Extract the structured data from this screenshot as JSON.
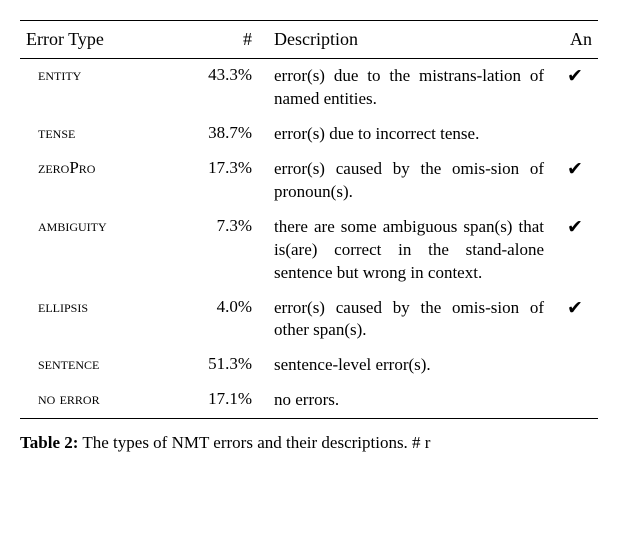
{
  "table": {
    "headers": {
      "col1": "Error Type",
      "col2": "#",
      "col3": "Description",
      "col4": "An"
    },
    "rows": [
      {
        "type_html": "<span class=\"smallcaps\">entity</span>",
        "percent": "43.3%",
        "description": "error(s) due to the mistrans-lation of named entities.",
        "an": "✔"
      },
      {
        "type_html": "<span class=\"smallcaps\">tense</span>",
        "percent": "38.7%",
        "description": "error(s) due to incorrect tense.",
        "an": ""
      },
      {
        "type_html": "<span class=\"smallcaps\">zeroPro</span>",
        "percent": "17.3%",
        "description": "error(s) caused by the omis-sion of pronoun(s).",
        "an": "✔"
      },
      {
        "type_html": "<span class=\"smallcaps\">ambiguity</span>",
        "percent": "7.3%",
        "description": "there are some ambiguous span(s) that is(are) correct in the stand-alone sentence but wrong in context.",
        "an": "✔"
      },
      {
        "type_html": "<span class=\"smallcaps\">ellipsis</span>",
        "percent": "4.0%",
        "description": "error(s) caused by the omis-sion of other span(s).",
        "an": "✔"
      },
      {
        "type_html": "<span class=\"smallcaps\">sentence</span>",
        "percent": "51.3%",
        "description": "sentence-level error(s).",
        "an": ""
      },
      {
        "type_html": "<span class=\"smallcaps\">no error</span>",
        "percent": "17.1%",
        "description": "no errors.",
        "an": ""
      }
    ]
  },
  "caption": {
    "label": "Table 2:",
    "text": " The types of NMT errors and their descriptions. # r"
  }
}
